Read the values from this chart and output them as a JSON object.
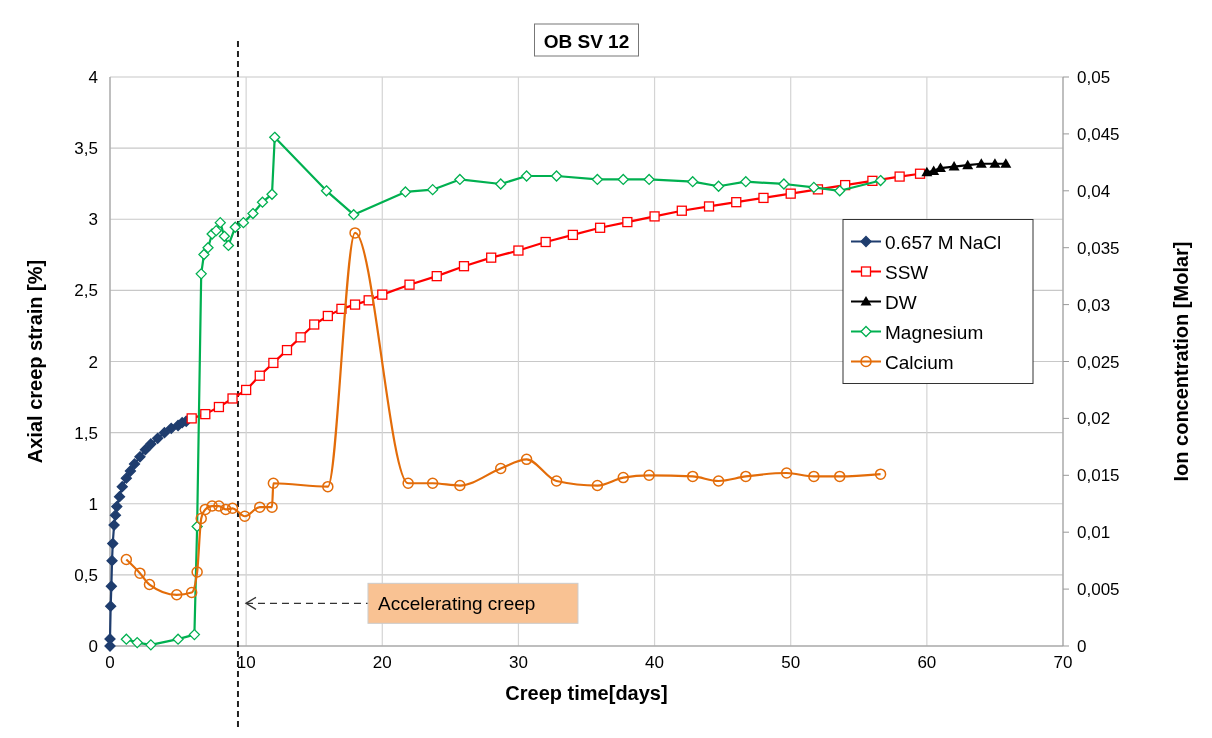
{
  "chart_data": {
    "type": "line",
    "title": "OB SV 12",
    "xlabel": "Creep time[days]",
    "ylabel": "Axial creep strain [%]",
    "y2label": "Ion concentration [Molar]",
    "xlim": [
      0,
      70
    ],
    "xticks": [
      0,
      10,
      20,
      30,
      40,
      50,
      60,
      70
    ],
    "ylim": [
      0,
      4
    ],
    "yticks": [
      0,
      {
        "value": 0.5,
        "label": "0,5"
      },
      1,
      {
        "value": 1.5,
        "label": "1,5"
      },
      2,
      {
        "value": 2.5,
        "label": "2,5"
      },
      3,
      {
        "value": 3.5,
        "label": "3,5"
      },
      4
    ],
    "y2lim": [
      0,
      0.05
    ],
    "y2ticks": [
      0,
      {
        "value": 0.005,
        "label": "0,005"
      },
      {
        "value": 0.01,
        "label": "0,01"
      },
      {
        "value": 0.015,
        "label": "0,015"
      },
      {
        "value": 0.02,
        "label": "0,02"
      },
      {
        "value": 0.025,
        "label": "0,025"
      },
      {
        "value": 0.03,
        "label": "0,03"
      },
      {
        "value": 0.035,
        "label": "0,035"
      },
      {
        "value": 0.04,
        "label": "0,04"
      },
      {
        "value": 0.045,
        "label": "0,045"
      },
      {
        "value": 0.05,
        "label": "0,05"
      }
    ],
    "grid": true,
    "legend": "right",
    "ref_lines": [
      {
        "axis": "x",
        "value": 9.4,
        "color": "#222222",
        "line_style": "dashed"
      }
    ],
    "annotations": [
      "Accelerating creep"
    ],
    "series": [
      {
        "name": "0.657 M NaCl",
        "color": "#1f3d6e",
        "marker": "diamond",
        "x": [
          0,
          0,
          0.05,
          0.1,
          0.15,
          0.2,
          0.3,
          0.4,
          0.5,
          0.7,
          0.9,
          1.2,
          1.5,
          1.8,
          2.2,
          2.6,
          3,
          3.5,
          4,
          4.5,
          5,
          5.3,
          5.6
        ],
        "values": [
          0,
          0.05,
          0.28,
          0.42,
          0.6,
          0.72,
          0.85,
          0.92,
          0.98,
          1.05,
          1.12,
          1.18,
          1.23,
          1.28,
          1.33,
          1.38,
          1.42,
          1.46,
          1.5,
          1.53,
          1.55,
          1.57,
          1.58
        ]
      },
      {
        "name": "SSW",
        "color": "#ff0000",
        "marker": "square",
        "x": [
          6,
          7,
          8,
          9,
          10,
          11,
          12,
          13,
          14,
          15,
          16,
          17,
          18,
          19,
          20,
          22,
          24,
          26,
          28,
          30,
          32,
          34,
          36,
          38,
          40,
          42,
          44,
          46,
          48,
          50,
          52,
          54,
          56,
          58,
          59.5
        ],
        "values": [
          1.6,
          1.63,
          1.68,
          1.74,
          1.8,
          1.9,
          1.99,
          2.08,
          2.17,
          2.26,
          2.32,
          2.37,
          2.4,
          2.43,
          2.47,
          2.54,
          2.6,
          2.67,
          2.73,
          2.78,
          2.84,
          2.89,
          2.94,
          2.98,
          3.02,
          3.06,
          3.09,
          3.12,
          3.15,
          3.18,
          3.21,
          3.24,
          3.27,
          3.3,
          3.32
        ]
      },
      {
        "name": "DW",
        "color": "#000000",
        "marker": "triangle",
        "x": [
          60,
          60.5,
          61,
          62,
          63,
          64,
          65,
          65.8
        ],
        "values": [
          3.33,
          3.34,
          3.36,
          3.37,
          3.38,
          3.39,
          3.39,
          3.39
        ]
      },
      {
        "name": "Magnesium",
        "color": "#00b050",
        "marker": "diamond",
        "axis": "y2",
        "x": [
          1.2,
          2,
          3,
          5,
          6.2,
          6.4,
          6.7,
          6.9,
          7.2,
          7.5,
          7.8,
          8.1,
          8.4,
          8.7,
          9.2,
          9.8,
          10.5,
          11.2,
          11.9,
          12.1,
          15.9,
          17.9,
          21.7,
          23.7,
          25.7,
          28.7,
          30.6,
          32.8,
          35.8,
          37.7,
          39.6,
          42.8,
          44.7,
          46.7,
          49.5,
          51.7,
          53.6,
          56.6
        ],
        "values": [
          0.0006,
          0.0003,
          0.0001,
          0.0006,
          0.001,
          0.0105,
          0.0327,
          0.0344,
          0.035,
          0.0362,
          0.0365,
          0.0372,
          0.036,
          0.0352,
          0.0368,
          0.0372,
          0.038,
          0.039,
          0.0397,
          0.0447,
          0.04,
          0.0379,
          0.0399,
          0.0401,
          0.041,
          0.0406,
          0.0413,
          0.0413,
          0.041,
          0.041,
          0.041,
          0.0408,
          0.0404,
          0.0408,
          0.0406,
          0.0403,
          0.04,
          0.0409
        ]
      },
      {
        "name": "Calcium",
        "color": "#e36c09",
        "marker": "circle",
        "axis": "y2",
        "x": [
          1.2,
          2.2,
          2.9,
          4.9,
          6,
          6.4,
          6.7,
          7,
          7.5,
          8,
          8.5,
          9,
          9.9,
          11,
          11.9,
          12,
          16,
          18,
          21.9,
          23.7,
          25.7,
          28.7,
          30.6,
          32.8,
          35.8,
          37.7,
          39.6,
          42.8,
          44.7,
          46.7,
          49.7,
          51.7,
          53.6,
          56.6
        ],
        "values": [
          0.0076,
          0.0064,
          0.0054,
          0.0045,
          0.0047,
          0.0065,
          0.0112,
          0.012,
          0.0123,
          0.0123,
          0.012,
          0.0121,
          0.0114,
          0.0122,
          0.0122,
          0.0143,
          0.014,
          0.0363,
          0.0143,
          0.0143,
          0.0141,
          0.0156,
          0.0164,
          0.0145,
          0.0141,
          0.0148,
          0.015,
          0.0149,
          0.0145,
          0.0149,
          0.0152,
          0.0149,
          0.0149,
          0.0151
        ]
      }
    ]
  }
}
